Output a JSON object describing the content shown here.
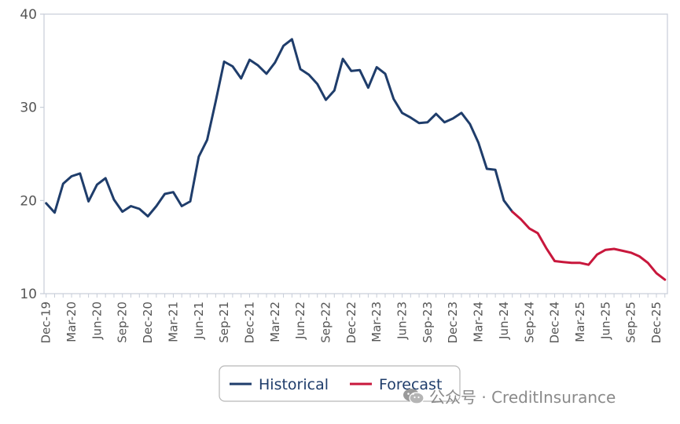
{
  "chart_data": {
    "type": "line",
    "title": "",
    "xlabel": "",
    "ylabel": "",
    "ylim": [
      10,
      40
    ],
    "yticks": [
      10,
      20,
      30,
      40
    ],
    "grid": false,
    "legend_position": "bottom",
    "x_tick_labels": [
      "Dec-19",
      "Mar-20",
      "Jun-20",
      "Sep-20",
      "Dec-20",
      "Mar-21",
      "Jun-21",
      "Sep-21",
      "Dec-21",
      "Mar-22",
      "Jun-22",
      "Sep-22",
      "Dec-22",
      "Mar-23",
      "Jun-23",
      "Sep-23",
      "Dec-23",
      "Mar-24",
      "Jun-24",
      "Sep-24",
      "Dec-24",
      "Mar-25",
      "Jun-25",
      "Sep-25",
      "Dec-25"
    ],
    "series": [
      {
        "name": "Historical",
        "color": "#1f3d6b",
        "x": [
          "Dec-19",
          "Jan-20",
          "Feb-20",
          "Mar-20",
          "Apr-20",
          "May-20",
          "Jun-20",
          "Jul-20",
          "Aug-20",
          "Sep-20",
          "Oct-20",
          "Nov-20",
          "Dec-20",
          "Jan-21",
          "Feb-21",
          "Mar-21",
          "Apr-21",
          "May-21",
          "Jun-21",
          "Jul-21",
          "Aug-21",
          "Sep-21",
          "Oct-21",
          "Nov-21",
          "Dec-21",
          "Jan-22",
          "Feb-22",
          "Mar-22",
          "Apr-22",
          "May-22",
          "Jun-22",
          "Jul-22",
          "Aug-22",
          "Sep-22",
          "Oct-22",
          "Nov-22",
          "Dec-22",
          "Jan-23",
          "Feb-23",
          "Mar-23",
          "Apr-23",
          "May-23",
          "Jun-23",
          "Jul-23",
          "Aug-23",
          "Sep-23",
          "Oct-23",
          "Nov-23",
          "Dec-23",
          "Jan-24",
          "Feb-24",
          "Mar-24",
          "Apr-24",
          "May-24",
          "Jun-24",
          "Jul-24"
        ],
        "values": [
          19.7,
          18.7,
          21.8,
          22.6,
          22.9,
          19.9,
          21.7,
          22.4,
          20.1,
          18.8,
          19.4,
          19.1,
          18.3,
          19.4,
          20.7,
          20.9,
          19.4,
          19.9,
          24.7,
          26.5,
          30.6,
          34.9,
          34.4,
          33.1,
          35.1,
          34.5,
          33.6,
          34.8,
          36.6,
          37.3,
          34.1,
          33.5,
          32.5,
          30.8,
          31.8,
          35.2,
          33.9,
          34.0,
          32.1,
          34.3,
          33.6,
          30.9,
          29.4,
          28.9,
          28.3,
          28.4,
          29.3,
          28.4,
          28.8,
          29.4,
          28.2,
          26.2,
          23.4,
          23.3,
          20.0,
          18.8
        ]
      },
      {
        "name": "Forecast",
        "color": "#c8173c",
        "x": [
          "Jul-24",
          "Aug-24",
          "Sep-24",
          "Oct-24",
          "Nov-24",
          "Dec-24",
          "Jan-25",
          "Feb-25",
          "Mar-25",
          "Apr-25",
          "May-25",
          "Jun-25",
          "Jul-25",
          "Aug-25",
          "Sep-25",
          "Oct-25",
          "Nov-25",
          "Dec-25",
          "Jan-26"
        ],
        "values": [
          18.8,
          18.0,
          17.0,
          16.5,
          14.9,
          13.5,
          13.4,
          13.3,
          13.3,
          13.1,
          14.2,
          14.7,
          14.8,
          14.6,
          14.4,
          14.0,
          13.3,
          12.2,
          11.5
        ]
      }
    ]
  },
  "watermark": {
    "icon": "wechat-icon",
    "text": "公众号 · CreditInsurance"
  }
}
